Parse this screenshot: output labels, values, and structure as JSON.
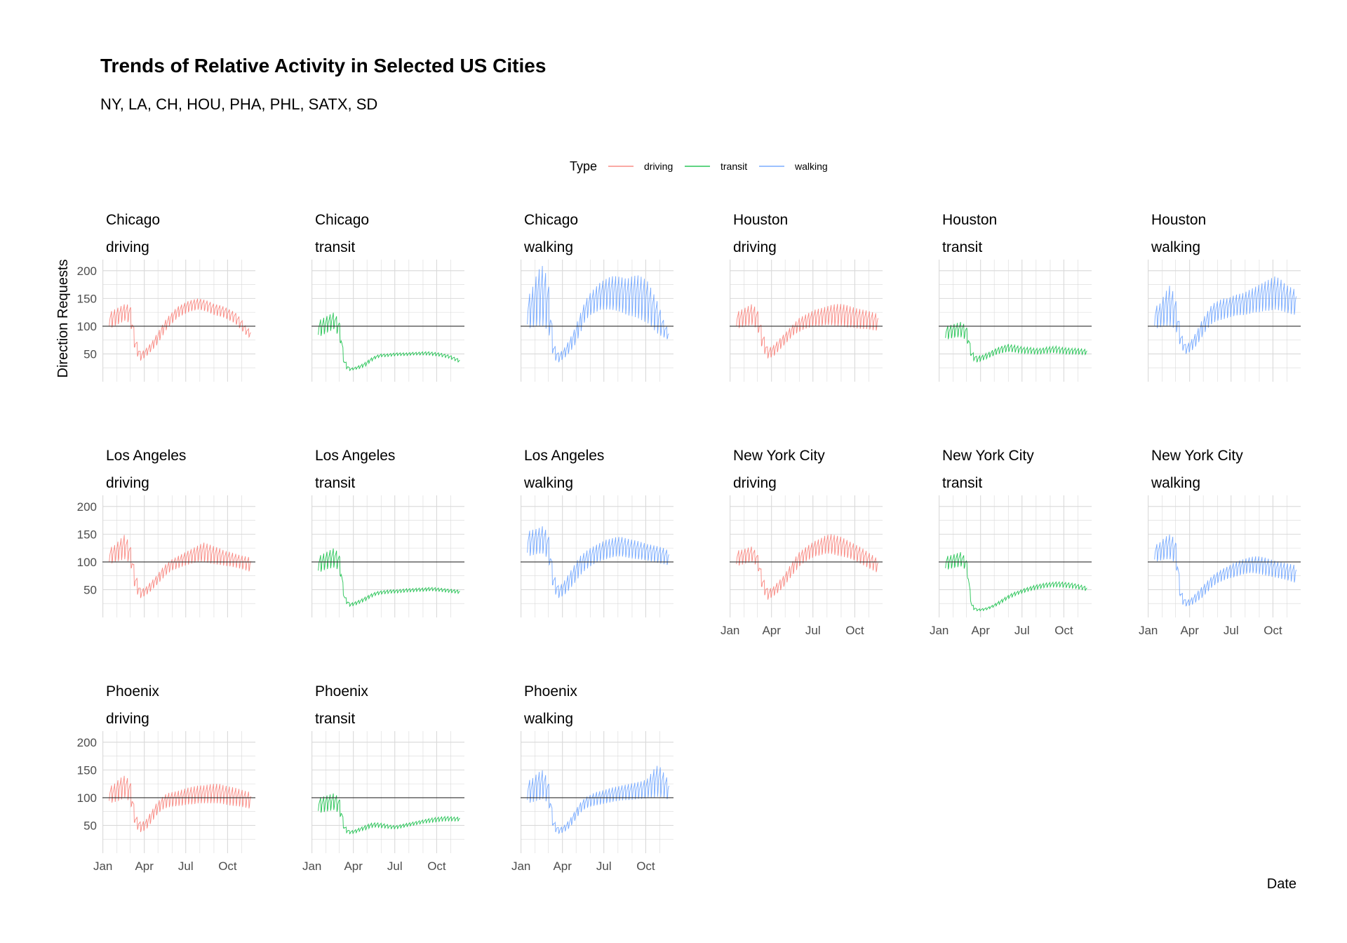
{
  "colors": {
    "driving": "#F8766D",
    "transit": "#00BA38",
    "walking": "#619CFF",
    "grid": "#d9d9d9",
    "baseline": "#333333"
  },
  "chart_data": {
    "type": "line",
    "title": "Trends of Relative Activity in Selected US Cities",
    "subtitle": "NY, LA, CH, HOU, PHA, PHL, SATX, SD",
    "xlabel": "Date",
    "ylabel": "Direction Requests",
    "ylim": [
      0,
      220
    ],
    "yticks": [
      50,
      100,
      150,
      200
    ],
    "xticks": [
      "Jan",
      "Apr",
      "Jul",
      "Oct"
    ],
    "baseline": 100,
    "grid": true,
    "legend": {
      "title": "Type",
      "position": "top",
      "entries": [
        "driving",
        "transit",
        "walking"
      ]
    },
    "facets": [
      {
        "city": "Chicago",
        "type": "driving",
        "weekly_peak": [
          125,
          130,
          135,
          140,
          138,
          80,
          52,
          60,
          70,
          85,
          100,
          115,
          125,
          135,
          140,
          145,
          148,
          150,
          148,
          145,
          140,
          138,
          135,
          130,
          125,
          115,
          100,
          92
        ],
        "weekly_trough": [
          95,
          100,
          105,
          110,
          105,
          50,
          38,
          45,
          55,
          65,
          80,
          95,
          105,
          115,
          120,
          125,
          128,
          130,
          128,
          125,
          120,
          118,
          115,
          110,
          105,
          95,
          85,
          78
        ]
      },
      {
        "city": "Chicago",
        "type": "transit",
        "weekly_peak": [
          110,
          115,
          120,
          125,
          110,
          40,
          24,
          26,
          30,
          35,
          42,
          47,
          50,
          50,
          51,
          52,
          52,
          52,
          53,
          53,
          54,
          54,
          53,
          52,
          50,
          48,
          44,
          40
        ],
        "weekly_trough": [
          80,
          85,
          90,
          95,
          80,
          25,
          20,
          22,
          24,
          28,
          36,
          42,
          45,
          45,
          46,
          47,
          47,
          47,
          48,
          48,
          48,
          48,
          47,
          46,
          44,
          42,
          38,
          34
        ]
      },
      {
        "city": "Chicago",
        "type": "walking",
        "weekly_peak": [
          150,
          170,
          200,
          210,
          180,
          70,
          50,
          60,
          75,
          95,
          120,
          145,
          160,
          170,
          180,
          185,
          190,
          190,
          188,
          185,
          190,
          192,
          188,
          180,
          160,
          140,
          110,
          90
        ],
        "weekly_trough": [
          95,
          98,
          100,
          100,
          92,
          40,
          35,
          42,
          52,
          65,
          85,
          110,
          120,
          125,
          130,
          130,
          130,
          128,
          125,
          120,
          118,
          115,
          110,
          105,
          95,
          85,
          80,
          75
        ]
      },
      {
        "city": "Houston",
        "type": "driving",
        "weekly_peak": [
          125,
          130,
          135,
          140,
          130,
          90,
          60,
          65,
          75,
          85,
          95,
          105,
          115,
          120,
          125,
          130,
          132,
          135,
          138,
          140,
          140,
          138,
          135,
          132,
          130,
          128,
          125,
          122
        ],
        "weekly_trough": [
          95,
          98,
          100,
          102,
          95,
          55,
          42,
          45,
          55,
          65,
          75,
          85,
          90,
          95,
          98,
          100,
          100,
          102,
          102,
          100,
          100,
          98,
          98,
          96,
          95,
          95,
          93,
          92
        ]
      },
      {
        "city": "Houston",
        "type": "transit",
        "weekly_peak": [
          100,
          102,
          105,
          108,
          100,
          55,
          45,
          48,
          52,
          57,
          62,
          65,
          68,
          66,
          64,
          62,
          62,
          60,
          60,
          62,
          63,
          64,
          62,
          61,
          60,
          60,
          59,
          58
        ],
        "weekly_trough": [
          75,
          78,
          80,
          80,
          75,
          40,
          35,
          38,
          42,
          46,
          50,
          52,
          54,
          53,
          52,
          51,
          51,
          50,
          50,
          51,
          52,
          52,
          51,
          50,
          50,
          50,
          49,
          49
        ]
      },
      {
        "city": "Houston",
        "type": "walking",
        "weekly_peak": [
          135,
          140,
          160,
          175,
          150,
          90,
          65,
          75,
          90,
          110,
          125,
          140,
          145,
          150,
          150,
          155,
          158,
          160,
          165,
          170,
          175,
          180,
          185,
          190,
          185,
          175,
          170,
          165
        ],
        "weekly_trough": [
          95,
          98,
          100,
          100,
          95,
          60,
          50,
          55,
          65,
          80,
          95,
          105,
          110,
          112,
          115,
          118,
          120,
          120,
          122,
          125,
          125,
          128,
          128,
          130,
          128,
          125,
          122,
          120
        ]
      },
      {
        "city": "Los Angeles",
        "type": "driving",
        "weekly_peak": [
          125,
          130,
          140,
          150,
          130,
          80,
          50,
          55,
          65,
          75,
          88,
          98,
          105,
          110,
          115,
          120,
          125,
          130,
          135,
          132,
          128,
          125,
          120,
          118,
          115,
          112,
          110,
          108
        ],
        "weekly_trough": [
          95,
          100,
          102,
          105,
          98,
          45,
          35,
          40,
          48,
          58,
          68,
          78,
          85,
          88,
          92,
          95,
          98,
          100,
          100,
          98,
          96,
          95,
          93,
          92,
          90,
          88,
          85,
          82
        ]
      },
      {
        "city": "Los Angeles",
        "type": "transit",
        "weekly_peak": [
          110,
          115,
          120,
          125,
          115,
          40,
          25,
          28,
          32,
          37,
          42,
          46,
          48,
          49,
          50,
          50,
          51,
          52,
          52,
          53,
          53,
          54,
          54,
          53,
          52,
          51,
          50,
          49
        ],
        "weekly_trough": [
          80,
          85,
          88,
          90,
          85,
          28,
          20,
          22,
          26,
          30,
          36,
          40,
          42,
          43,
          44,
          44,
          45,
          46,
          46,
          47,
          47,
          48,
          48,
          47,
          46,
          45,
          44,
          43
        ]
      },
      {
        "city": "Los Angeles",
        "type": "walking",
        "weekly_peak": [
          155,
          158,
          160,
          165,
          150,
          80,
          55,
          65,
          80,
          95,
          110,
          118,
          125,
          130,
          135,
          140,
          142,
          145,
          145,
          142,
          140,
          138,
          135,
          132,
          130,
          128,
          125,
          120
        ],
        "weekly_trough": [
          110,
          112,
          115,
          115,
          105,
          45,
          35,
          40,
          50,
          62,
          75,
          85,
          92,
          98,
          102,
          105,
          108,
          110,
          110,
          108,
          106,
          105,
          104,
          102,
          100,
          98,
          96,
          94
        ]
      },
      {
        "city": "New York City",
        "type": "driving",
        "weekly_peak": [
          120,
          122,
          125,
          128,
          115,
          75,
          50,
          55,
          65,
          75,
          90,
          105,
          118,
          125,
          132,
          138,
          142,
          148,
          150,
          148,
          145,
          140,
          135,
          130,
          125,
          118,
          112,
          105
        ],
        "weekly_trough": [
          92,
          95,
          98,
          100,
          92,
          45,
          32,
          38,
          45,
          55,
          68,
          80,
          92,
          100,
          105,
          110,
          112,
          115,
          115,
          112,
          110,
          108,
          105,
          100,
          95,
          90,
          85,
          80
        ]
      },
      {
        "city": "New York City",
        "type": "transit",
        "weekly_peak": [
          110,
          112,
          115,
          118,
          105,
          25,
          15,
          16,
          18,
          22,
          28,
          34,
          40,
          45,
          48,
          52,
          55,
          58,
          60,
          62,
          63,
          64,
          64,
          63,
          62,
          60,
          58,
          55
        ],
        "weekly_trough": [
          85,
          88,
          90,
          92,
          85,
          15,
          12,
          12,
          14,
          18,
          22,
          28,
          34,
          38,
          42,
          45,
          48,
          50,
          52,
          54,
          55,
          55,
          55,
          54,
          53,
          52,
          50,
          48
        ]
      },
      {
        "city": "New York City",
        "type": "walking",
        "weekly_peak": [
          130,
          135,
          145,
          150,
          140,
          50,
          30,
          35,
          45,
          55,
          65,
          75,
          82,
          88,
          92,
          98,
          102,
          105,
          108,
          110,
          110,
          108,
          105,
          102,
          100,
          98,
          96,
          94
        ],
        "weekly_trough": [
          100,
          102,
          105,
          105,
          98,
          25,
          20,
          22,
          28,
          35,
          45,
          55,
          62,
          66,
          70,
          72,
          75,
          78,
          80,
          80,
          78,
          76,
          74,
          72,
          70,
          68,
          65,
          62
        ]
      },
      {
        "city": "Phoenix",
        "type": "driving",
        "weekly_peak": [
          120,
          125,
          135,
          140,
          130,
          70,
          55,
          60,
          75,
          90,
          100,
          108,
          110,
          112,
          115,
          118,
          120,
          122,
          122,
          124,
          125,
          125,
          122,
          120,
          118,
          115,
          112,
          110
        ],
        "weekly_trough": [
          90,
          92,
          95,
          100,
          92,
          45,
          38,
          42,
          55,
          68,
          78,
          82,
          84,
          85,
          86,
          88,
          88,
          90,
          90,
          90,
          90,
          90,
          88,
          86,
          85,
          84,
          82,
          80
        ]
      },
      {
        "city": "Phoenix",
        "type": "transit",
        "weekly_peak": [
          100,
          102,
          105,
          108,
          100,
          50,
          40,
          42,
          46,
          50,
          54,
          55,
          54,
          52,
          50,
          50,
          52,
          54,
          56,
          58,
          60,
          62,
          64,
          65,
          66,
          66,
          65,
          65
        ],
        "weekly_trough": [
          72,
          74,
          76,
          78,
          72,
          38,
          35,
          36,
          40,
          42,
          46,
          47,
          46,
          45,
          44,
          44,
          46,
          48,
          50,
          52,
          54,
          55,
          56,
          57,
          58,
          58,
          58,
          58
        ]
      },
      {
        "city": "Phoenix",
        "type": "walking",
        "weekly_peak": [
          130,
          135,
          145,
          150,
          130,
          60,
          45,
          50,
          60,
          75,
          90,
          100,
          105,
          110,
          112,
          115,
          118,
          120,
          122,
          124,
          126,
          128,
          130,
          135,
          150,
          160,
          145,
          130
        ],
        "weekly_trough": [
          90,
          92,
          95,
          98,
          90,
          40,
          35,
          38,
          45,
          58,
          72,
          80,
          84,
          86,
          88,
          90,
          92,
          94,
          95,
          96,
          96,
          98,
          98,
          100,
          100,
          102,
          100,
          96
        ]
      }
    ]
  }
}
